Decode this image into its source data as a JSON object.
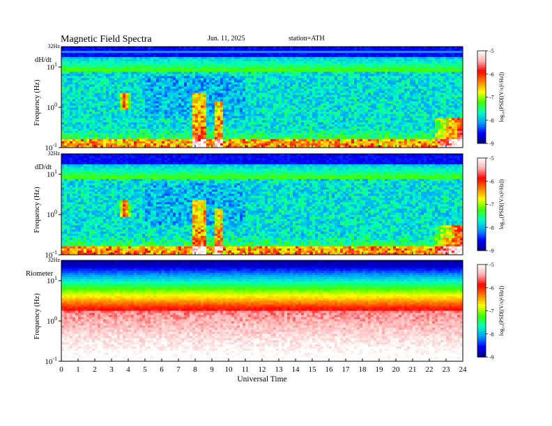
{
  "header": {
    "title": "Magnetic  Field  Spectra",
    "date": "Jun.  11,  2025",
    "station": "station=ATH"
  },
  "chart_data": [
    {
      "type": "heatmap",
      "panel_label": "dH/dt",
      "ylabel": "Frequency  (Hz)",
      "y_ticks": [
        {
          "base": "10",
          "exp": "-1",
          "value": 0.1
        },
        {
          "base": "10",
          "exp": "0",
          "value": 1
        },
        {
          "base": "10",
          "exp": "1",
          "value": 10
        }
      ],
      "y_top_label": "32Hz",
      "y_range_hz": [
        0.1,
        32
      ],
      "y_scale": "log",
      "x_range_hours": [
        0,
        24
      ],
      "colorbar": {
        "label": "log₁₀(PSD[(V/s)²/Hz])",
        "ticks": [
          "-5",
          "-6",
          "-7",
          "-8",
          "-9"
        ],
        "range": [
          -9,
          -5
        ]
      }
    },
    {
      "type": "heatmap",
      "panel_label": "dD/dt",
      "ylabel": "Frequency  (Hz)",
      "y_ticks": [
        {
          "base": "10",
          "exp": "-1",
          "value": 0.1
        },
        {
          "base": "10",
          "exp": "0",
          "value": 1
        },
        {
          "base": "10",
          "exp": "1",
          "value": 10
        }
      ],
      "y_top_label": "32Hz",
      "y_range_hz": [
        0.1,
        32
      ],
      "y_scale": "log",
      "x_range_hours": [
        0,
        24
      ],
      "colorbar": {
        "label": "log₁₀(PSD[(V/s)²/Hz])",
        "ticks": [
          "-5",
          "-6",
          "-7",
          "-8",
          "-9"
        ],
        "range": [
          -9,
          -5
        ]
      }
    },
    {
      "type": "heatmap",
      "panel_label": "Riometer",
      "ylabel": "Frequency  (Hz)",
      "y_ticks": [
        {
          "base": "10",
          "exp": "-1",
          "value": 0.1
        },
        {
          "base": "10",
          "exp": "0",
          "value": 1
        },
        {
          "base": "10",
          "exp": "1",
          "value": 10
        }
      ],
      "y_top_label": "32Hz",
      "y_range_hz": [
        0.1,
        32
      ],
      "y_scale": "log",
      "x_range_hours": [
        0,
        24
      ],
      "colorbar": {
        "label": "log₁₀(PSD[(V/s)²/Hz])",
        "ticks": [
          "-5",
          "-6",
          "-7",
          "-8",
          "-9"
        ],
        "range": [
          -9,
          -5
        ]
      }
    }
  ],
  "x_axis": {
    "title": "Universal  Time",
    "ticks": [
      "0",
      "1",
      "2",
      "3",
      "4",
      "5",
      "6",
      "7",
      "8",
      "9",
      "10",
      "11",
      "12",
      "13",
      "14",
      "15",
      "16",
      "17",
      "18",
      "19",
      "20",
      "21",
      "22",
      "23",
      "24"
    ]
  },
  "colors": {
    "scale": [
      "#000080",
      "#0000ff",
      "#00a0ff",
      "#00ffc0",
      "#40ff00",
      "#ffff00",
      "#ff8000",
      "#ff0000",
      "#ffb0b0",
      "#ffffff"
    ]
  }
}
